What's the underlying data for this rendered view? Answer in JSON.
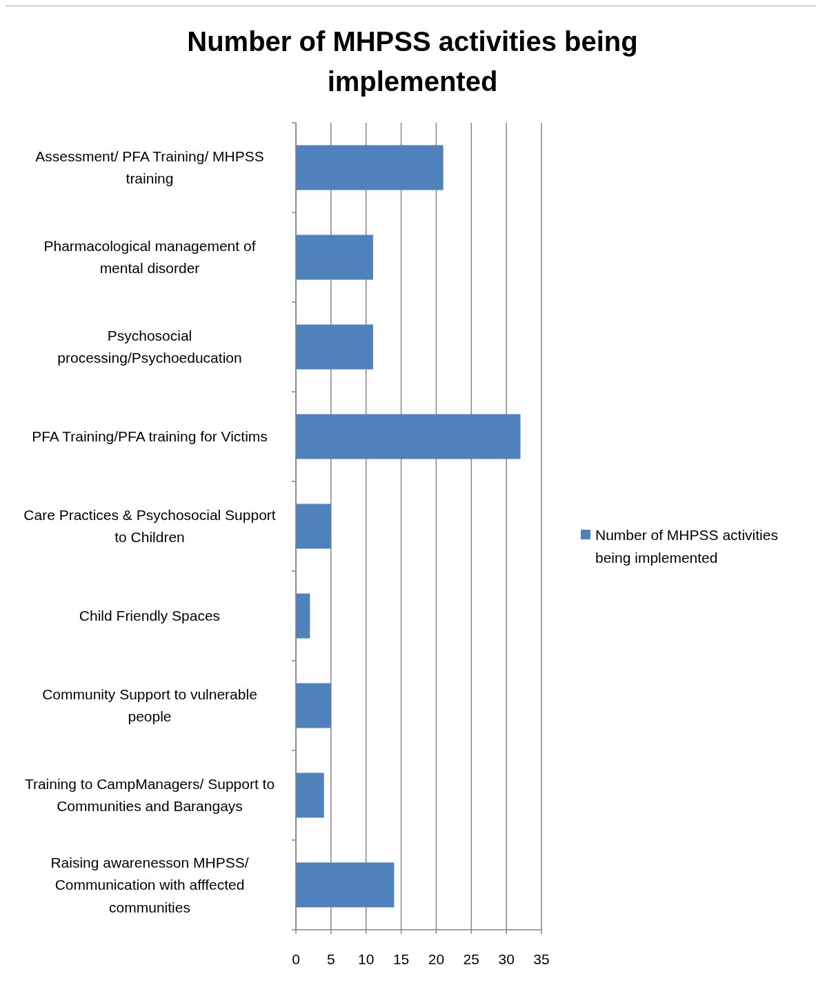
{
  "chart_data": {
    "type": "bar",
    "orientation": "horizontal",
    "title": "Number of MHPSS activities being implemented",
    "categories": [
      "Assessment/ PFA Training/ MHPSS training",
      "Pharmacological management of mental disorder",
      "Psychosocial processing/Psychoeducation",
      "PFA Training/PFA training for Victims",
      "Care Practices & Psychosocial Support to Children",
      "Child Friendly Spaces",
      "Community Support to vulnerable people",
      "Training to CampManagers/ Support to Communities and Barangays",
      "Raising awarenesson MHPSS/ Communication with afffected communities"
    ],
    "series": [
      {
        "name": "Number of MHPSS activities being implemented",
        "color": "#4f81bd",
        "values": [
          21,
          11,
          11,
          32,
          5,
          2,
          5,
          4,
          14
        ]
      }
    ],
    "xlim": [
      0,
      35
    ],
    "xticks": [
      0,
      5,
      10,
      15,
      20,
      25,
      30,
      35
    ],
    "grid": "x",
    "legend": "right"
  }
}
